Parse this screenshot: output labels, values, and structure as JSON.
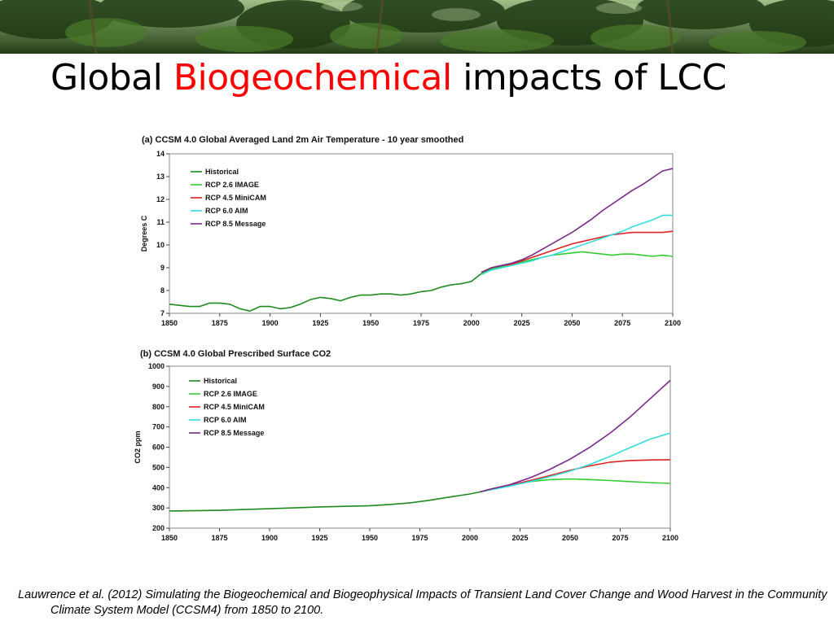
{
  "slide": {
    "title_part1": "Global ",
    "title_accent": "Biogeochemical",
    "title_part2": " impacts of LCC",
    "accent_color": "#ff0000",
    "citation": "Lauwrence et al. (2012) Simulating the Biogeochemical and Biogeophysical Impacts of Transient Land Cover Change and Wood Harvest in the Community Climate System Model (CCSM4) from 1850 to 2100."
  },
  "chart_data": [
    {
      "type": "line",
      "title": "(a) CCSM 4.0 Global Averaged Land 2m Air Temperature - 10 year smoothed",
      "xlabel": "",
      "ylabel": "Degrees C",
      "xlim": [
        1850,
        2100
      ],
      "ylim": [
        7,
        14
      ],
      "x_ticks": [
        1850,
        1875,
        1900,
        1925,
        1950,
        1975,
        2000,
        2025,
        2050,
        2075,
        2100
      ],
      "y_ticks": [
        7,
        8,
        9,
        10,
        11,
        12,
        13,
        14
      ],
      "grid": false,
      "legend_position": "top-left",
      "series": [
        {
          "name": "Historical",
          "color": "#1e8a1e",
          "x": [
            1850,
            1855,
            1860,
            1865,
            1870,
            1875,
            1880,
            1885,
            1890,
            1895,
            1900,
            1905,
            1910,
            1915,
            1920,
            1925,
            1930,
            1935,
            1940,
            1945,
            1950,
            1955,
            1960,
            1965,
            1970,
            1975,
            1980,
            1985,
            1990,
            1995,
            2000,
            2005
          ],
          "y": [
            7.4,
            7.35,
            7.3,
            7.3,
            7.45,
            7.45,
            7.4,
            7.2,
            7.1,
            7.3,
            7.3,
            7.2,
            7.25,
            7.4,
            7.6,
            7.7,
            7.65,
            7.55,
            7.7,
            7.8,
            7.8,
            7.85,
            7.85,
            7.8,
            7.85,
            7.95,
            8.0,
            8.15,
            8.25,
            8.3,
            8.4,
            8.75
          ]
        },
        {
          "name": "RCP 2.6 IMAGE",
          "color": "#33cc33",
          "x": [
            2005,
            2010,
            2015,
            2020,
            2025,
            2030,
            2035,
            2040,
            2045,
            2050,
            2055,
            2060,
            2065,
            2070,
            2075,
            2080,
            2085,
            2090,
            2095,
            2100
          ],
          "y": [
            8.75,
            8.95,
            9.05,
            9.15,
            9.25,
            9.35,
            9.45,
            9.55,
            9.6,
            9.65,
            9.7,
            9.65,
            9.6,
            9.55,
            9.6,
            9.6,
            9.55,
            9.5,
            9.55,
            9.5
          ]
        },
        {
          "name": "RCP 4.5 MiniCAM",
          "color": "#dd2222",
          "x": [
            2005,
            2010,
            2015,
            2020,
            2025,
            2030,
            2035,
            2040,
            2045,
            2050,
            2055,
            2060,
            2065,
            2070,
            2075,
            2080,
            2085,
            2090,
            2095,
            2100
          ],
          "y": [
            8.8,
            9.0,
            9.1,
            9.15,
            9.3,
            9.45,
            9.6,
            9.75,
            9.9,
            10.05,
            10.15,
            10.25,
            10.35,
            10.45,
            10.5,
            10.55,
            10.55,
            10.55,
            10.55,
            10.6
          ]
        },
        {
          "name": "RCP 6.0 AIM",
          "color": "#33dddd",
          "x": [
            2005,
            2010,
            2015,
            2020,
            2025,
            2030,
            2035,
            2040,
            2045,
            2050,
            2055,
            2060,
            2065,
            2070,
            2075,
            2080,
            2085,
            2090,
            2095,
            2100
          ],
          "y": [
            8.7,
            8.9,
            9.0,
            9.1,
            9.2,
            9.3,
            9.45,
            9.55,
            9.7,
            9.85,
            10.0,
            10.15,
            10.3,
            10.45,
            10.6,
            10.8,
            10.95,
            11.1,
            11.3,
            11.3
          ]
        },
        {
          "name": "RCP 8.5 Message",
          "color": "#7a2a8a",
          "x": [
            2005,
            2010,
            2015,
            2020,
            2025,
            2030,
            2035,
            2040,
            2045,
            2050,
            2055,
            2060,
            2065,
            2070,
            2075,
            2080,
            2085,
            2090,
            2095,
            2100
          ],
          "y": [
            8.8,
            9.0,
            9.1,
            9.2,
            9.35,
            9.55,
            9.8,
            10.05,
            10.3,
            10.55,
            10.85,
            11.15,
            11.5,
            11.8,
            12.1,
            12.4,
            12.65,
            12.95,
            13.25,
            13.35
          ]
        }
      ]
    },
    {
      "type": "line",
      "title": "(b) CCSM 4.0 Global Prescribed Surface CO2",
      "xlabel": "",
      "ylabel": "CO2 ppm",
      "xlim": [
        1850,
        2100
      ],
      "ylim": [
        200,
        1000
      ],
      "x_ticks": [
        1850,
        1875,
        1900,
        1925,
        1950,
        1975,
        2000,
        2025,
        2050,
        2075,
        2100
      ],
      "y_ticks": [
        200,
        300,
        400,
        500,
        600,
        700,
        800,
        900,
        1000
      ],
      "grid": false,
      "legend_position": "top-left",
      "series": [
        {
          "name": "Historical",
          "color": "#1e8a1e",
          "x": [
            1850,
            1875,
            1900,
            1925,
            1950,
            1960,
            1970,
            1980,
            1990,
            2000,
            2005
          ],
          "y": [
            285,
            288,
            296,
            305,
            311,
            317,
            325,
            338,
            354,
            369,
            379
          ]
        },
        {
          "name": "RCP 2.6 IMAGE",
          "color": "#33cc33",
          "x": [
            2005,
            2010,
            2020,
            2030,
            2040,
            2050,
            2060,
            2070,
            2080,
            2090,
            2100
          ],
          "y": [
            379,
            390,
            412,
            430,
            440,
            443,
            440,
            435,
            430,
            425,
            421
          ]
        },
        {
          "name": "RCP 4.5 MiniCAM",
          "color": "#dd2222",
          "x": [
            2005,
            2010,
            2020,
            2030,
            2040,
            2050,
            2060,
            2070,
            2080,
            2090,
            2100
          ],
          "y": [
            379,
            390,
            412,
            435,
            460,
            486,
            508,
            526,
            534,
            537,
            538
          ]
        },
        {
          "name": "RCP 6.0 AIM",
          "color": "#33dddd",
          "x": [
            2005,
            2010,
            2020,
            2030,
            2040,
            2050,
            2060,
            2070,
            2080,
            2090,
            2100
          ],
          "y": [
            379,
            389,
            408,
            430,
            455,
            482,
            515,
            555,
            598,
            640,
            670
          ]
        },
        {
          "name": "RCP 8.5 Message",
          "color": "#7a2a8a",
          "x": [
            2005,
            2010,
            2020,
            2030,
            2040,
            2050,
            2060,
            2070,
            2080,
            2090,
            2100
          ],
          "y": [
            379,
            392,
            415,
            449,
            491,
            541,
            601,
            670,
            750,
            840,
            930
          ]
        }
      ]
    }
  ]
}
